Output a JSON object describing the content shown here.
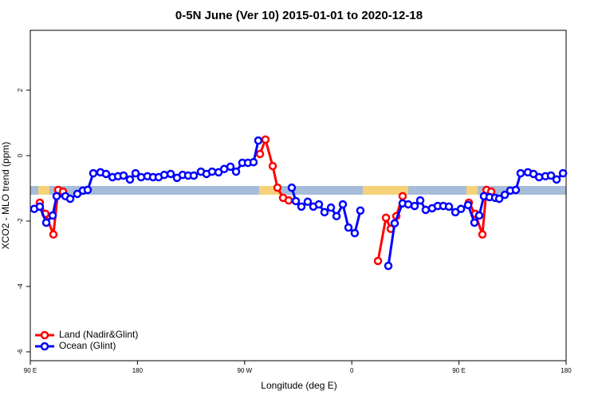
{
  "chart_data": {
    "type": "line",
    "title": "0-5N June (Ver 10)   2015-01-01 to 2020-12-18",
    "x_label": "Longitude (deg E)",
    "y_label": "XCO2 - MLO trend (ppm)",
    "xlim": [
      90,
      540
    ],
    "xticks": [
      {
        "value": 90,
        "label": "90 E"
      },
      {
        "value": 180,
        "label": "180"
      },
      {
        "value": 270,
        "label": "90 W"
      },
      {
        "value": 360,
        "label": "0"
      },
      {
        "value": 450,
        "label": "90 E"
      },
      {
        "value": 540,
        "label": "180"
      }
    ],
    "ylim": [
      -6.27,
      3.83
    ],
    "yticks": [
      -6,
      -4,
      -2,
      0,
      2
    ],
    "legend": "bottom-left",
    "series": [
      {
        "name": "Land (Nadir&Glint)",
        "color": "#ff0000",
        "x": [
          98.0,
          102.7,
          109.4,
          113.4,
          117.5,
          null,
          282.9,
          287.5,
          293.6,
          297.6,
          302.3,
          307.0,
          null,
          382.0,
          388.7,
          392.7,
          397.4,
          402.7,
          null,
          458.3,
          463.7,
          469.7,
          473.1,
          477.1
        ],
        "values": [
          -1.44,
          -1.78,
          -2.41,
          -1.05,
          -1.1,
          null,
          0.05,
          0.49,
          -0.32,
          -0.98,
          -1.29,
          -1.37,
          null,
          -3.22,
          -1.9,
          -2.24,
          -1.85,
          -1.24,
          null,
          -1.44,
          -1.78,
          -2.41,
          -1.05,
          -1.1
        ]
      },
      {
        "name": "Ocean (Glint)",
        "color": "#0000ff",
        "x": [
          93.3,
          98.0,
          103.4,
          108.8,
          112.1,
          119.5,
          123.5,
          129.5,
          134.2,
          138.2,
          142.9,
          148.9,
          153.6,
          159.0,
          163.7,
          168.3,
          173.7,
          178.4,
          183.1,
          188.4,
          193.1,
          197.8,
          202.5,
          207.9,
          213.2,
          217.9,
          222.6,
          227.3,
          233.3,
          238.0,
          242.7,
          248.1,
          252.8,
          258.1,
          262.8,
          268.1,
          272.8,
          277.5,
          281.5,
          null,
          309.6,
          313.0,
          317.7,
          323.0,
          327.7,
          332.4,
          337.1,
          342.5,
          347.2,
          352.5,
          357.2,
          362.5,
          367.2,
          null,
          390.7,
          396.0,
          402.7,
          407.4,
          412.8,
          417.5,
          422.1,
          427.5,
          432.2,
          436.9,
          441.6,
          447.0,
          451.7,
          457.7,
          463.0,
          467.0,
          471.0,
          475.7,
          480.4,
          483.8,
          488.5,
          493.1,
          497.8,
          501.8,
          507.9,
          512.6,
          517.3,
          522.6,
          527.3,
          532.0,
          537.4
        ],
        "values": [
          -1.63,
          -1.56,
          -2.05,
          -1.83,
          -1.24,
          -1.24,
          -1.32,
          -1.17,
          -1.07,
          -1.05,
          -0.54,
          -0.51,
          -0.56,
          -0.66,
          -0.63,
          -0.61,
          -0.73,
          -0.54,
          -0.66,
          -0.63,
          -0.66,
          -0.66,
          -0.59,
          -0.56,
          -0.68,
          -0.59,
          -0.61,
          -0.61,
          -0.49,
          -0.56,
          -0.49,
          -0.51,
          -0.41,
          -0.34,
          -0.49,
          -0.22,
          -0.22,
          -0.2,
          0.46,
          null,
          -0.98,
          -1.39,
          -1.56,
          -1.41,
          -1.56,
          -1.49,
          -1.73,
          -1.59,
          -1.85,
          -1.49,
          -2.2,
          -2.37,
          -1.68,
          null,
          -3.37,
          -2.07,
          -1.46,
          -1.49,
          -1.54,
          -1.37,
          -1.66,
          -1.61,
          -1.54,
          -1.54,
          -1.56,
          -1.73,
          -1.63,
          -1.51,
          -2.05,
          -1.83,
          -1.24,
          -1.27,
          -1.29,
          -1.32,
          -1.2,
          -1.07,
          -1.05,
          -0.54,
          -0.51,
          -0.56,
          -0.66,
          -0.63,
          -0.61,
          -0.73,
          -0.54
        ]
      }
    ]
  }
}
